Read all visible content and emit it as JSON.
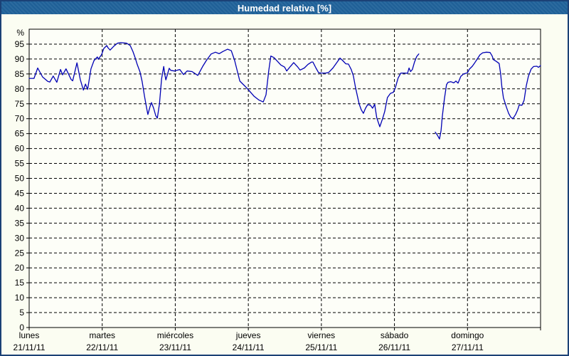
{
  "window": {
    "title": "Humedad relativa [%]"
  },
  "colors": {
    "title_bar": "#20629a",
    "frame": "#1b4176",
    "background": "#fbfdf2",
    "plot_background": "#fdfef8",
    "grid": "#000000",
    "line": "#0000b4",
    "title_text": "#ffffff",
    "axis_text": "#000000"
  },
  "chart_data": {
    "type": "line",
    "title": "Humedad relativa [%]",
    "ylabel": "%",
    "ylim": [
      0,
      100
    ],
    "y_ticks": [
      0,
      5,
      10,
      15,
      20,
      25,
      30,
      35,
      40,
      45,
      50,
      55,
      60,
      65,
      70,
      75,
      80,
      85,
      90,
      95
    ],
    "grid": "dashed",
    "legend_position": "none",
    "x_span_hours": 168,
    "x_days": [
      {
        "name": "lunes",
        "date": "21/11/11"
      },
      {
        "name": "martes",
        "date": "22/11/11"
      },
      {
        "name": "miércoles",
        "date": "23/11/11"
      },
      {
        "name": "jueves",
        "date": "24/11/11"
      },
      {
        "name": "viernes",
        "date": "25/11/11"
      },
      {
        "name": "sábado",
        "date": "26/11/11"
      },
      {
        "name": "domingo",
        "date": "27/11/11"
      }
    ],
    "line_color": "#0000b4",
    "series": [
      {
        "name": "Humedad relativa",
        "unit": "%",
        "segments": [
          {
            "hours": [
              0,
              1.6,
              2.8,
              4.4,
              6.1,
              6.8,
              7.9,
              9.1,
              10.3,
              11,
              12.1,
              13.8,
              14.3,
              15.7,
              16.8,
              17.8,
              18.5,
              19.2,
              20.3,
              21.3,
              22.4,
              22.7,
              23.8,
              24.5,
              25.5,
              25.9,
              26.6,
              27.8,
              29,
              30.1,
              32,
              33.2,
              34.1,
              34.8,
              35.5,
              36.4,
              37.1,
              37.9,
              38.6,
              39,
              39.7,
              40.2,
              40.9,
              41.6,
              42.1,
              42.8,
              43.5,
              44.2,
              44.6,
              44.9,
              45.6,
              46,
              46.5,
              47.7,
              49.5,
              50.7,
              51.9,
              53.5,
              55.4,
              57,
              58.2,
              59.8,
              61.2,
              62.4,
              63.6,
              65.2,
              66.4,
              67.5,
              69.2,
              70.8,
              72.2,
              73.9,
              75.4,
              76.9,
              77.8,
              78.7,
              79.4,
              80.4,
              81.5,
              82.7,
              83.9,
              84.6,
              85.8,
              86.9,
              88.1,
              89,
              90.4,
              91.6,
              92.8,
              93.2,
              94.2,
              95.1,
              96,
              97.4,
              98.4,
              99.8,
              101.2,
              102.1,
              103,
              104,
              104.9,
              105.8,
              106.5,
              107.2,
              108.4,
              109.1,
              109.8,
              110.5,
              111.2,
              112.1,
              112.8,
              113.5,
              114.2,
              115.2,
              116.1,
              116.8,
              117.7,
              118.7,
              119.6,
              120.3,
              121.2,
              122.1,
              123.6,
              124.3,
              124.8,
              125.3,
              125.9,
              126.6,
              127.3,
              128
            ],
            "values": [
              83.5,
              83.5,
              87,
              84,
              82.5,
              82.3,
              84.3,
              82.2,
              86.5,
              84.7,
              86.7,
              83.1,
              82.7,
              88.7,
              83.1,
              79.6,
              81.6,
              79.8,
              86.7,
              89.5,
              90.7,
              89.9,
              91.5,
              93.5,
              94.5,
              93.8,
              93,
              94.3,
              95.3,
              95.5,
              95.3,
              94.5,
              92.5,
              90.5,
              88.2,
              85.7,
              82.5,
              77.5,
              73.5,
              71.4,
              74,
              75.4,
              73.5,
              71,
              70.2,
              75,
              83.4,
              87.5,
              84.6,
              83,
              85.5,
              86.9,
              86.2,
              86,
              86.5,
              84.8,
              86,
              85.8,
              84.5,
              87.5,
              89.5,
              91.7,
              92.3,
              91.8,
              92.5,
              93.3,
              92.8,
              89.5,
              82.6,
              81,
              79.5,
              77.5,
              76.3,
              75.6,
              78,
              86,
              91,
              90.5,
              89.3,
              88,
              87.3,
              86,
              87.5,
              88.8,
              87.5,
              86.3,
              87,
              88.2,
              89,
              89,
              87,
              85.4,
              85.3,
              85.3,
              85.5,
              87,
              89,
              90.3,
              89.5,
              88.4,
              88.3,
              86.5,
              84.4,
              80.5,
              75,
              73,
              71.8,
              73.5,
              74.7,
              74.5,
              73.5,
              74.8,
              70.3,
              67.3,
              70,
              72.4,
              77.1,
              78.5,
              78.8,
              80.4,
              83.6,
              85.3,
              85.3,
              85.2,
              87,
              85.8,
              86.5,
              89,
              90.8,
              91.7
            ]
          },
          {
            "hours": [
              133.4,
              134.1,
              134.8,
              135.3,
              135.7,
              136.4,
              137.1,
              137.6,
              138.5,
              139.5,
              140.2,
              140.9,
              141.8,
              142.7,
              144,
              144.6,
              145.6,
              146.3,
              147.2,
              148.1,
              149,
              150.2,
              151.4,
              152.1,
              152.5,
              153.5,
              154.4,
              154.9,
              155.3,
              155.8,
              156.8,
              157.5,
              158.2,
              158.9,
              159.8,
              160.5,
              161,
              161.9,
              162.6,
              163.3,
              164,
              164.9,
              165.7,
              166.8,
              167.3,
              168
            ],
            "values": [
              65.5,
              64.5,
              63.2,
              66,
              70.6,
              76.6,
              81.4,
              82.2,
              82.4,
              82,
              82.6,
              81.9,
              84.2,
              85,
              85.4,
              86.6,
              87.6,
              88.6,
              90,
              91.4,
              92.1,
              92.3,
              92.2,
              91,
              89.8,
              89.2,
              88.5,
              85,
              80.7,
              77,
              73.8,
              71.8,
              70.5,
              70,
              71.4,
              73,
              74.6,
              74.5,
              76.2,
              81,
              84.2,
              86.6,
              87.5,
              87.6,
              87.2,
              87.8
            ]
          }
        ]
      }
    ]
  }
}
